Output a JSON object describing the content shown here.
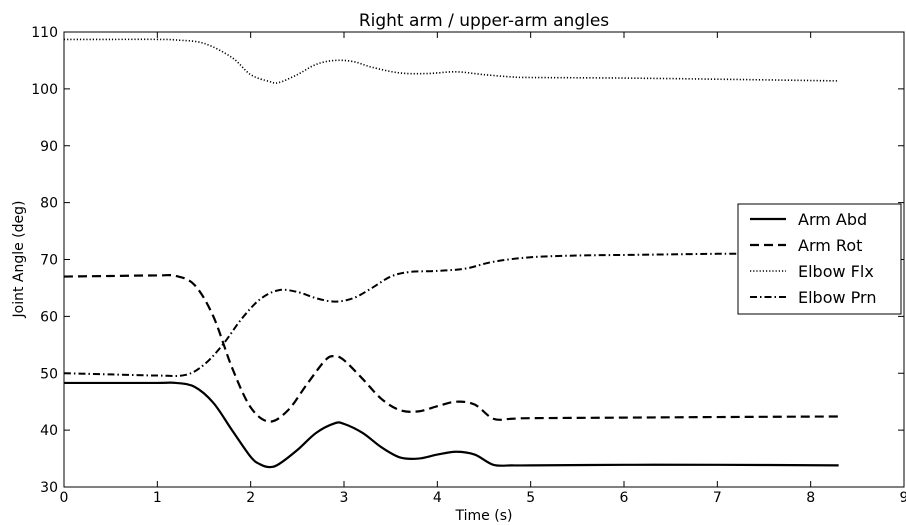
{
  "chart_data": {
    "type": "line",
    "title": "Right arm / upper-arm angles",
    "xlabel": "Time (s)",
    "ylabel": "Joint Angle (deg)",
    "xlim": [
      0,
      9
    ],
    "ylim": [
      30,
      110
    ],
    "xticks": [
      0,
      1,
      2,
      3,
      4,
      5,
      6,
      7,
      8,
      9
    ],
    "yticks": [
      30,
      40,
      50,
      60,
      70,
      80,
      90,
      100,
      110
    ],
    "grid": false,
    "legend_position": "center-right",
    "series": [
      {
        "name": "Arm Abd",
        "style": "solid",
        "color": "#000000",
        "points": [
          [
            0,
            48.3
          ],
          [
            0.5,
            48.3
          ],
          [
            1.0,
            48.3
          ],
          [
            1.2,
            48.3
          ],
          [
            1.4,
            47.6
          ],
          [
            1.6,
            44.8
          ],
          [
            1.8,
            40.0
          ],
          [
            2.0,
            35.3
          ],
          [
            2.1,
            34.0
          ],
          [
            2.2,
            33.5
          ],
          [
            2.3,
            34.0
          ],
          [
            2.5,
            36.5
          ],
          [
            2.7,
            39.5
          ],
          [
            2.9,
            41.2
          ],
          [
            3.0,
            41.1
          ],
          [
            3.2,
            39.5
          ],
          [
            3.4,
            37.0
          ],
          [
            3.6,
            35.2
          ],
          [
            3.8,
            35.0
          ],
          [
            4.0,
            35.7
          ],
          [
            4.2,
            36.2
          ],
          [
            4.4,
            35.7
          ],
          [
            4.6,
            33.9
          ],
          [
            4.8,
            33.8
          ],
          [
            5.0,
            33.8
          ],
          [
            6.0,
            33.9
          ],
          [
            7.0,
            33.9
          ],
          [
            8.3,
            33.8
          ]
        ]
      },
      {
        "name": "Arm Rot",
        "style": "dashed",
        "color": "#000000",
        "points": [
          [
            0,
            67.0
          ],
          [
            0.5,
            67.1
          ],
          [
            1.0,
            67.2
          ],
          [
            1.2,
            67.1
          ],
          [
            1.4,
            65.5
          ],
          [
            1.6,
            60.0
          ],
          [
            1.8,
            51.0
          ],
          [
            2.0,
            44.0
          ],
          [
            2.2,
            41.5
          ],
          [
            2.4,
            43.5
          ],
          [
            2.6,
            48.0
          ],
          [
            2.8,
            52.3
          ],
          [
            2.9,
            53.0
          ],
          [
            3.0,
            52.3
          ],
          [
            3.2,
            49.0
          ],
          [
            3.4,
            45.5
          ],
          [
            3.6,
            43.5
          ],
          [
            3.8,
            43.3
          ],
          [
            4.0,
            44.2
          ],
          [
            4.2,
            45.0
          ],
          [
            4.4,
            44.5
          ],
          [
            4.6,
            42.0
          ],
          [
            4.8,
            42.0
          ],
          [
            5.0,
            42.1
          ],
          [
            6.0,
            42.2
          ],
          [
            7.0,
            42.3
          ],
          [
            8.3,
            42.4
          ]
        ]
      },
      {
        "name": "Elbow Flx",
        "style": "dotted",
        "color": "#000000",
        "points": [
          [
            0,
            108.7
          ],
          [
            0.5,
            108.7
          ],
          [
            1.0,
            108.7
          ],
          [
            1.2,
            108.6
          ],
          [
            1.5,
            108.0
          ],
          [
            1.8,
            105.5
          ],
          [
            2.0,
            102.5
          ],
          [
            2.2,
            101.3
          ],
          [
            2.3,
            101.1
          ],
          [
            2.5,
            102.5
          ],
          [
            2.7,
            104.3
          ],
          [
            2.9,
            105.0
          ],
          [
            3.1,
            104.8
          ],
          [
            3.3,
            103.8
          ],
          [
            3.6,
            102.8
          ],
          [
            3.9,
            102.7
          ],
          [
            4.2,
            103.0
          ],
          [
            4.5,
            102.5
          ],
          [
            4.8,
            102.1
          ],
          [
            5.0,
            102.0
          ],
          [
            6.0,
            101.9
          ],
          [
            7.0,
            101.7
          ],
          [
            8.3,
            101.4
          ]
        ]
      },
      {
        "name": "Elbow Prn",
        "style": "dash-dot",
        "color": "#000000",
        "points": [
          [
            0,
            50.0
          ],
          [
            0.5,
            49.8
          ],
          [
            1.0,
            49.6
          ],
          [
            1.3,
            49.7
          ],
          [
            1.5,
            51.5
          ],
          [
            1.7,
            55.0
          ],
          [
            1.9,
            59.5
          ],
          [
            2.1,
            63.0
          ],
          [
            2.3,
            64.6
          ],
          [
            2.5,
            64.3
          ],
          [
            2.7,
            63.2
          ],
          [
            2.9,
            62.6
          ],
          [
            3.1,
            63.2
          ],
          [
            3.3,
            65.0
          ],
          [
            3.5,
            67.0
          ],
          [
            3.7,
            67.8
          ],
          [
            4.0,
            68.0
          ],
          [
            4.3,
            68.4
          ],
          [
            4.6,
            69.6
          ],
          [
            5.0,
            70.4
          ],
          [
            5.5,
            70.7
          ],
          [
            6.0,
            70.8
          ],
          [
            6.5,
            70.9
          ],
          [
            7.0,
            71.0
          ],
          [
            7.3,
            71.0
          ]
        ]
      }
    ]
  }
}
